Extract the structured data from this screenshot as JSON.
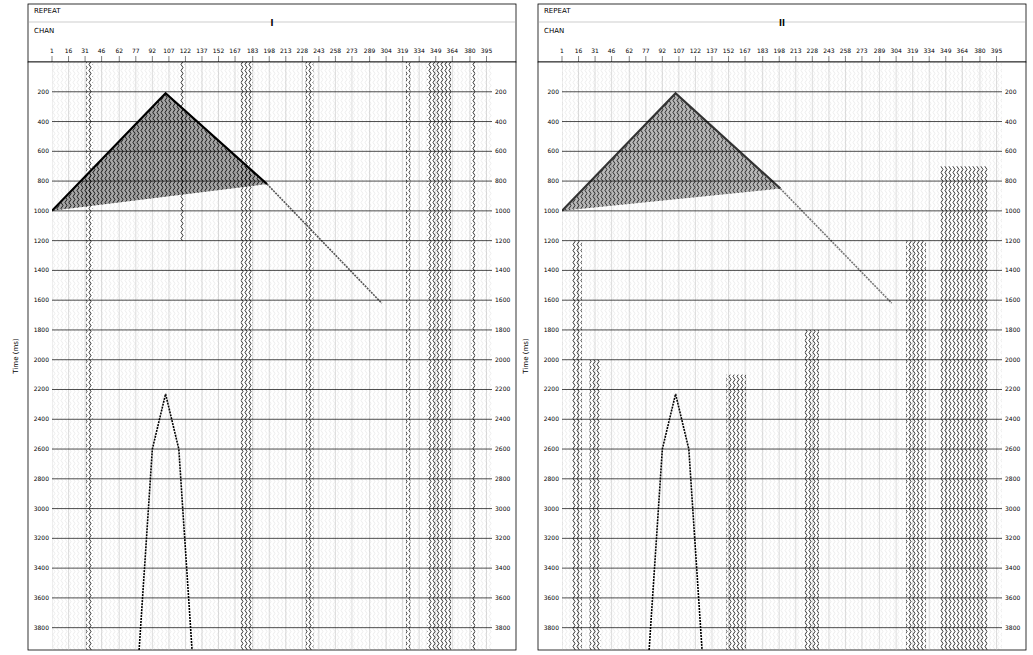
{
  "chart_data": [
    {
      "type": "seismic_gather",
      "title": "I",
      "annotations": [
        "REPEAT",
        "CHAN"
      ],
      "y_label": "Time (ms)",
      "xlim": [
        1,
        400
      ],
      "xticks": [
        1,
        16,
        31,
        46,
        62,
        77,
        92,
        107,
        122,
        137,
        152,
        167,
        183,
        198,
        213,
        228,
        243,
        258,
        273,
        289,
        304,
        319,
        334,
        349,
        364,
        380,
        395
      ],
      "ylim": [
        0,
        3950
      ],
      "yticks": [
        200,
        400,
        600,
        800,
        1000,
        1200,
        1400,
        1600,
        1800,
        2000,
        2200,
        2400,
        2600,
        2800,
        3000,
        3200,
        3400,
        3600,
        3800
      ],
      "grid": true,
      "series": [
        {
          "type": "area",
          "color": "#000000",
          "x": [
            1,
            104,
            196
          ],
          "values": [
            1000,
            210,
            820
          ]
        },
        {
          "type": "line",
          "color": "#555555",
          "x": [
            196,
            300
          ],
          "values": [
            820,
            1620
          ]
        },
        {
          "type": "line",
          "color": "#000000",
          "x": [
            80,
            92,
            104,
            116,
            128
          ],
          "values": [
            3950,
            2600,
            2230,
            2600,
            3950
          ]
        }
      ],
      "noise_bands": [
        {
          "channels": [
            32,
            38
          ],
          "time": [
            0,
            3950
          ]
        },
        {
          "channels": [
            117,
            121
          ],
          "time": [
            0,
            1200
          ]
        },
        {
          "channels": [
            172,
            183
          ],
          "time": [
            0,
            3950
          ]
        },
        {
          "channels": [
            231,
            238
          ],
          "time": [
            0,
            3950
          ]
        },
        {
          "channels": [
            322,
            326
          ],
          "time": [
            0,
            3950
          ]
        },
        {
          "channels": [
            341,
            363
          ],
          "time": [
            0,
            3950
          ]
        },
        {
          "channels": [
            381,
            385
          ],
          "time": [
            0,
            3950
          ]
        }
      ]
    },
    {
      "type": "seismic_gather",
      "title": "II",
      "annotations": [
        "REPEAT",
        "CHAN"
      ],
      "y_label": "Time (ms)",
      "xlim": [
        1,
        400
      ],
      "xticks": [
        1,
        16,
        31,
        46,
        62,
        77,
        92,
        107,
        122,
        137,
        152,
        167,
        183,
        198,
        213,
        228,
        243,
        258,
        273,
        289,
        304,
        319,
        334,
        349,
        364,
        380,
        395
      ],
      "ylim": [
        0,
        3950
      ],
      "yticks": [
        200,
        400,
        600,
        800,
        1000,
        1200,
        1400,
        1600,
        1800,
        2000,
        2200,
        2400,
        2600,
        2800,
        3000,
        3200,
        3400,
        3600,
        3800
      ],
      "grid": true,
      "series": [
        {
          "type": "area",
          "color": "#333333",
          "x": [
            1,
            104,
            199
          ],
          "values": [
            1000,
            210,
            850
          ]
        },
        {
          "type": "line",
          "color": "#777777",
          "x": [
            199,
            300
          ],
          "values": [
            850,
            1620
          ]
        },
        {
          "type": "line",
          "color": "#000000",
          "x": [
            80,
            92,
            104,
            116,
            128
          ],
          "values": [
            3950,
            2600,
            2230,
            2600,
            3950
          ]
        }
      ],
      "noise_bands": [
        {
          "channels": [
            10,
            19
          ],
          "time": [
            1200,
            3950
          ]
        },
        {
          "channels": [
            26,
            36
          ],
          "time": [
            2000,
            3950
          ]
        },
        {
          "channels": [
            150,
            168
          ],
          "time": [
            2100,
            3950
          ]
        },
        {
          "channels": [
            221,
            234
          ],
          "time": [
            1800,
            3950
          ]
        },
        {
          "channels": [
            313,
            331
          ],
          "time": [
            1200,
            3950
          ]
        },
        {
          "channels": [
            344,
            387
          ],
          "time": [
            700,
            3950
          ]
        }
      ]
    }
  ]
}
